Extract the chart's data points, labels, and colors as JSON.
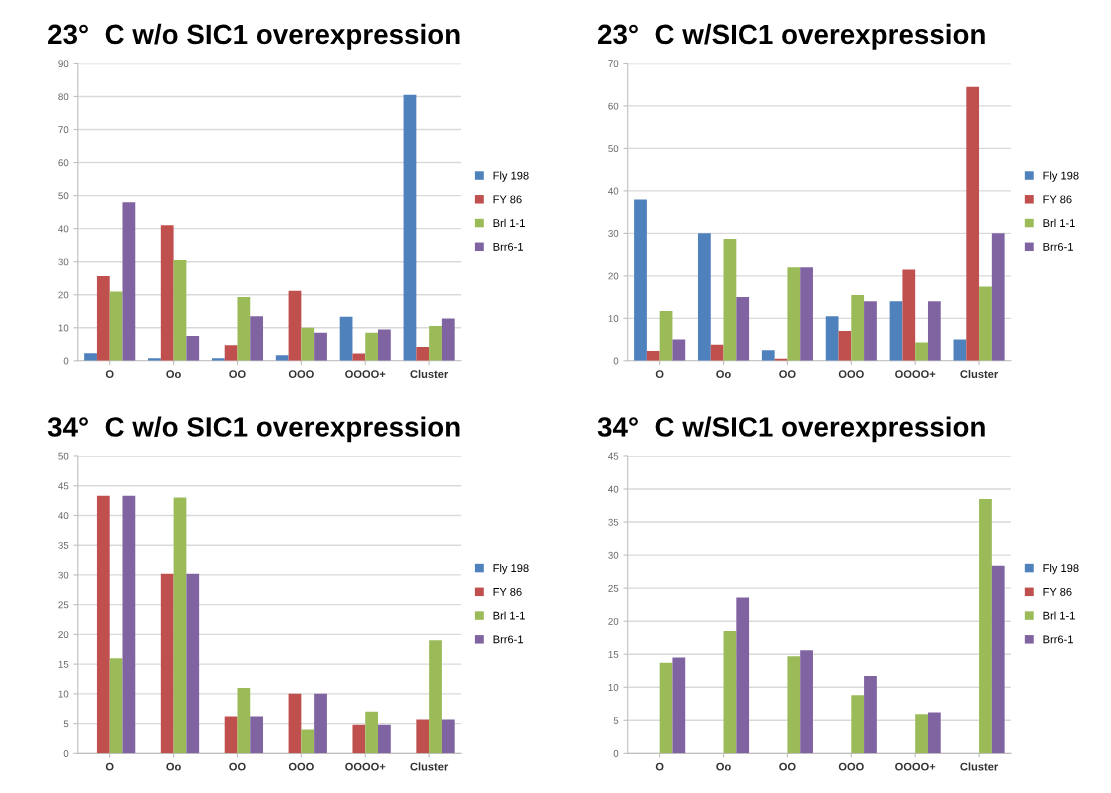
{
  "chart_data": [
    {
      "type": "bar",
      "title": "23°  C w/o SIC1 overexpression",
      "categories": [
        "O",
        "Oo",
        "OO",
        "OOO",
        "OOOO+",
        "Cluster"
      ],
      "ylim": [
        0,
        90
      ],
      "yticks": [
        0,
        10,
        20,
        30,
        40,
        50,
        60,
        70,
        80,
        90
      ],
      "grid": "y",
      "legend": "right",
      "series": [
        {
          "name": "Fly 198",
          "color": "#4f81bd",
          "values": [
            2.3,
            0.8,
            0.8,
            1.7,
            13.3,
            80.5
          ]
        },
        {
          "name": "FY 86",
          "color": "#c0504d",
          "values": [
            25.7,
            41,
            4.7,
            21.2,
            2.2,
            4.2
          ]
        },
        {
          "name": "Brl 1-1",
          "color": "#9bbb59",
          "values": [
            21,
            30.5,
            19.3,
            10,
            8.5,
            10.5
          ]
        },
        {
          "name": "Brr6-1",
          "color": "#8064a2",
          "values": [
            48,
            7.5,
            13.5,
            8.5,
            9.5,
            12.8
          ]
        }
      ]
    },
    {
      "type": "bar",
      "title": "23°  C w/SIC1 overexpression",
      "categories": [
        "O",
        "Oo",
        "OO",
        "OOO",
        "OOOO+",
        "Cluster"
      ],
      "ylim": [
        0,
        70
      ],
      "yticks": [
        0,
        10,
        20,
        30,
        40,
        50,
        60,
        70
      ],
      "grid": "y",
      "legend": "right",
      "series": [
        {
          "name": "Fly 198",
          "color": "#4f81bd",
          "values": [
            38,
            30,
            2.5,
            10.5,
            14,
            5
          ]
        },
        {
          "name": "FY 86",
          "color": "#c0504d",
          "values": [
            2.3,
            3.8,
            0.5,
            7,
            21.5,
            64.5
          ]
        },
        {
          "name": "Brl 1-1",
          "color": "#9bbb59",
          "values": [
            11.7,
            28.7,
            22,
            15.5,
            4.3,
            17.5
          ]
        },
        {
          "name": "Brr6-1",
          "color": "#8064a2",
          "values": [
            5,
            15,
            22,
            14,
            14,
            30
          ]
        }
      ]
    },
    {
      "type": "bar",
      "title": "34°  C w/o SIC1 overexpression",
      "categories": [
        "O",
        "Oo",
        "OO",
        "OOO",
        "OOOO+",
        "Cluster"
      ],
      "ylim": [
        0,
        50
      ],
      "yticks": [
        0,
        5,
        10,
        15,
        20,
        25,
        30,
        35,
        40,
        45,
        50
      ],
      "grid": "y",
      "legend": "right",
      "series": [
        {
          "name": "Fly 198",
          "color": "#4f81bd",
          "values": [
            null,
            null,
            null,
            null,
            null,
            null
          ]
        },
        {
          "name": "FY 86",
          "color": "#c0504d",
          "values": [
            43.3,
            30.2,
            6.2,
            10,
            4.8,
            5.7
          ]
        },
        {
          "name": "Brl 1-1",
          "color": "#9bbb59",
          "values": [
            16,
            43,
            11,
            4,
            7,
            19
          ]
        },
        {
          "name": "Brr6-1",
          "color": "#8064a2",
          "values": [
            43.3,
            30.2,
            6.2,
            10,
            4.8,
            5.7
          ]
        }
      ]
    },
    {
      "type": "bar",
      "title": "34°  C w/SIC1 overexpression",
      "categories": [
        "O",
        "Oo",
        "OO",
        "OOO",
        "OOOO+",
        "Cluster"
      ],
      "ylim": [
        0,
        45
      ],
      "yticks": [
        0,
        5,
        10,
        15,
        20,
        25,
        30,
        35,
        40,
        45
      ],
      "grid": "y",
      "legend": "right",
      "series": [
        {
          "name": "Fly 198",
          "color": "#4f81bd",
          "values": [
            null,
            null,
            null,
            null,
            null,
            null
          ]
        },
        {
          "name": "FY 86",
          "color": "#c0504d",
          "values": [
            null,
            null,
            null,
            null,
            null,
            null
          ]
        },
        {
          "name": "Brl 1-1",
          "color": "#9bbb59",
          "values": [
            13.7,
            18.5,
            14.7,
            8.8,
            5.9,
            38.5
          ]
        },
        {
          "name": "Brr6-1",
          "color": "#8064a2",
          "values": [
            14.5,
            23.6,
            15.6,
            11.7,
            6.2,
            28.4
          ]
        }
      ]
    }
  ]
}
